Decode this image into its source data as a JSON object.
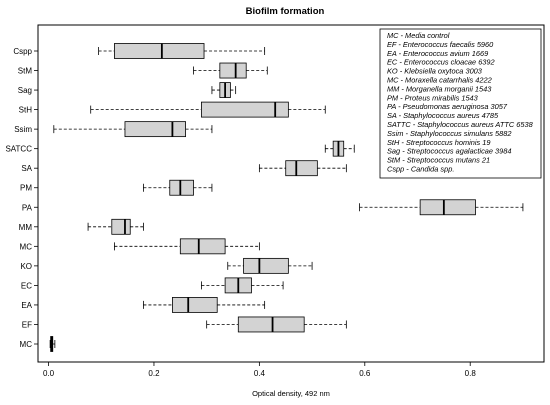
{
  "chart_data": {
    "type": "boxplot",
    "orientation": "horizontal",
    "title": "Biofilm formation",
    "xlabel": "Optical density, 492 nm",
    "xlim": [
      -0.02,
      0.94
    ],
    "xticks": [
      "0.0",
      "0.2",
      "0.4",
      "0.6",
      "0.8"
    ],
    "xtick_values": [
      0,
      0.2,
      0.4,
      0.6,
      0.8
    ],
    "box_fill": "#d3d3d3",
    "legend_position": "top-right",
    "legend": [
      {
        "abbr": "MC",
        "text": "MC - Media control"
      },
      {
        "abbr": "EF",
        "text": "EF - Enterococcus faecalis 5960"
      },
      {
        "abbr": "EA",
        "text": "EA - Enterococcus avium 1669"
      },
      {
        "abbr": "EC",
        "text": "EC - Enterococcus cloacae 6392"
      },
      {
        "abbr": "KO",
        "text": "KO - Klebsiella oxytoca 3003"
      },
      {
        "abbr": "MC",
        "text": "MC - Moraxella catarrhalis 4222"
      },
      {
        "abbr": "MM",
        "text": "MM - Morganella morganii 1543"
      },
      {
        "abbr": "PM",
        "text": "PM - Proteus mirabilis 1543"
      },
      {
        "abbr": "PA",
        "text": "PA - Pseudomonas aeruginosa 3057"
      },
      {
        "abbr": "SA",
        "text": "SA - Staphylococcus aureus 4785"
      },
      {
        "abbr": "SATTC",
        "text": "SATTC - Staphylococcus aureus ATTC 6538"
      },
      {
        "abbr": "Ssim",
        "text": "Ssim - Staphylococcus simulans 5882"
      },
      {
        "abbr": "StH",
        "text": "StH - Streptococcus hominis 19"
      },
      {
        "abbr": "Sag",
        "text": "Sag - Streptococcus agalacticae 3984"
      },
      {
        "abbr": "StM",
        "text": "StM - Streptococcus mutans 21"
      },
      {
        "abbr": "Cspp",
        "text": "Cspp - Candida spp."
      }
    ],
    "categories": [
      "MC",
      "EF",
      "EA",
      "EC",
      "KO",
      "MC",
      "MM",
      "PA",
      "PM",
      "SA",
      "SATCC",
      "Ssim",
      "StH",
      "Sag",
      "StM",
      "Cspp"
    ],
    "boxes": [
      {
        "label": "MC",
        "min": 0.003,
        "q1": 0.004,
        "median": 0.006,
        "q3": 0.008,
        "max": 0.012
      },
      {
        "label": "EF",
        "min": 0.3,
        "q1": 0.36,
        "median": 0.425,
        "q3": 0.485,
        "max": 0.565
      },
      {
        "label": "EA",
        "min": 0.18,
        "q1": 0.235,
        "median": 0.265,
        "q3": 0.32,
        "max": 0.41
      },
      {
        "label": "EC",
        "min": 0.29,
        "q1": 0.335,
        "median": 0.36,
        "q3": 0.385,
        "max": 0.445
      },
      {
        "label": "KO",
        "min": 0.34,
        "q1": 0.37,
        "median": 0.4,
        "q3": 0.455,
        "max": 0.5
      },
      {
        "label": "MC",
        "min": 0.125,
        "q1": 0.25,
        "median": 0.285,
        "q3": 0.335,
        "max": 0.4
      },
      {
        "label": "MM",
        "min": 0.075,
        "q1": 0.12,
        "median": 0.145,
        "q3": 0.155,
        "max": 0.18
      },
      {
        "label": "PA",
        "min": 0.59,
        "q1": 0.705,
        "median": 0.75,
        "q3": 0.81,
        "max": 0.9
      },
      {
        "label": "PM",
        "min": 0.18,
        "q1": 0.23,
        "median": 0.25,
        "q3": 0.275,
        "max": 0.31
      },
      {
        "label": "SA",
        "min": 0.4,
        "q1": 0.45,
        "median": 0.47,
        "q3": 0.51,
        "max": 0.565
      },
      {
        "label": "SATCC",
        "min": 0.525,
        "q1": 0.54,
        "median": 0.55,
        "q3": 0.56,
        "max": 0.58
      },
      {
        "label": "Ssim",
        "min": 0.01,
        "q1": 0.145,
        "median": 0.235,
        "q3": 0.26,
        "max": 0.31
      },
      {
        "label": "StH",
        "min": 0.08,
        "q1": 0.29,
        "median": 0.43,
        "q3": 0.455,
        "max": 0.525
      },
      {
        "label": "Sag",
        "min": 0.31,
        "q1": 0.325,
        "median": 0.335,
        "q3": 0.345,
        "max": 0.355
      },
      {
        "label": "StM",
        "min": 0.275,
        "q1": 0.325,
        "median": 0.355,
        "q3": 0.375,
        "max": 0.415
      },
      {
        "label": "Cspp",
        "min": 0.095,
        "q1": 0.125,
        "median": 0.215,
        "q3": 0.295,
        "max": 0.41
      }
    ]
  }
}
